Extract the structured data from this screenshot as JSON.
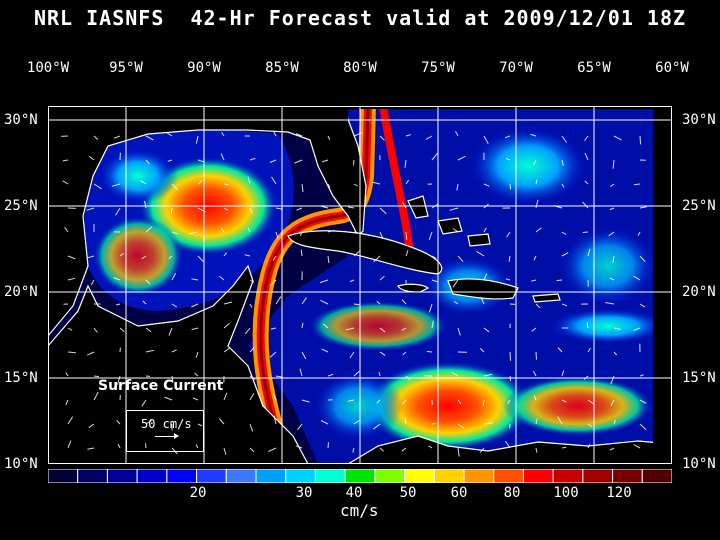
{
  "title": "NRL IASNFS  42-Hr Forecast valid at 2009/12/01 18Z",
  "lon_labels": [
    "100°W",
    "95°W",
    "90°W",
    "85°W",
    "80°W",
    "75°W",
    "70°W",
    "65°W",
    "60°W"
  ],
  "lat_labels": [
    "30°N",
    "25°N",
    "20°N",
    "15°N",
    "10°N"
  ],
  "legend": {
    "title": "Surface Current",
    "speed": "50 cm/s"
  },
  "colorbar": {
    "ticks": [
      "20",
      "30",
      "40",
      "50",
      "60",
      "80",
      "100",
      "120"
    ],
    "unit": "cm/s",
    "colors": [
      "#000033",
      "#000066",
      "#000099",
      "#0000cc",
      "#0000ff",
      "#1e3cff",
      "#3c78ff",
      "#00a0ff",
      "#00d2ff",
      "#00ffd2",
      "#00e600",
      "#7fff00",
      "#ffff00",
      "#ffd200",
      "#ff9600",
      "#ff5000",
      "#ff0000",
      "#c80000",
      "#a00000",
      "#780000",
      "#500000"
    ]
  },
  "colors": {
    "ocean": "#000064",
    "land": "#000000",
    "coast": "#ffffff",
    "grid": "#ffffff"
  }
}
